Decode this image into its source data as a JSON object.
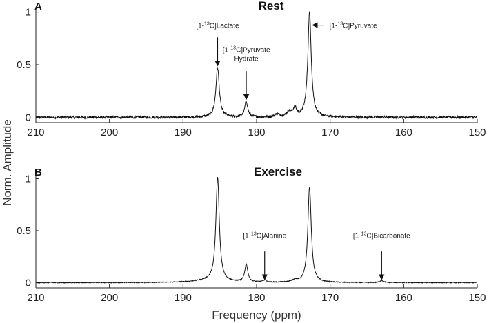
{
  "figure": {
    "ylabel": "Norm. Amplitude",
    "xlabel": "Frequency (ppm)"
  },
  "chart_data": [
    {
      "type": "line",
      "letter": "A",
      "title": "Rest",
      "xlim": [
        210,
        150
      ],
      "ylim": [
        -0.05,
        1.05
      ],
      "xticks": [
        210,
        200,
        190,
        180,
        170,
        160,
        150
      ],
      "yticks": [
        0,
        0.5,
        1
      ],
      "ytick_labels": [
        "0",
        "0.5",
        "1"
      ],
      "peaks": [
        {
          "ppm": 185.3,
          "height": 0.47,
          "width": 0.28
        },
        {
          "ppm": 181.4,
          "height": 0.15,
          "width": 0.25
        },
        {
          "ppm": 177.2,
          "height": 0.03,
          "width": 0.3
        },
        {
          "ppm": 175.6,
          "height": 0.05,
          "width": 0.35
        },
        {
          "ppm": 174.8,
          "height": 0.08,
          "width": 0.3
        },
        {
          "ppm": 172.8,
          "height": 1.0,
          "width": 0.28
        }
      ],
      "noise": 0.012,
      "annotations": [
        {
          "lines": [
            "[1-13C]Lactate"
          ],
          "ppm": 185.3,
          "arrow": "down",
          "text_y": 0.85,
          "arrow_start_y": 0.76,
          "arrow_end_y": 0.49
        },
        {
          "lines": [
            "[1-13C]Pyruvate",
            "Hydrate"
          ],
          "ppm": 181.4,
          "arrow": "down",
          "text_y": 0.62,
          "arrow_start_y": 0.44,
          "arrow_end_y": 0.17
        },
        {
          "lines": [
            "[1-13C]Pyruvate"
          ],
          "ppm": 172.8,
          "arrow": "left",
          "text_y": 0.85,
          "arrow_start_ppm": 170.8,
          "arrow_end_ppm": 172.4
        }
      ]
    },
    {
      "type": "line",
      "letter": "B",
      "title": "Exercise",
      "xlim": [
        210,
        150
      ],
      "ylim": [
        -0.05,
        1.05
      ],
      "xticks": [
        210,
        200,
        190,
        180,
        170,
        160,
        150
      ],
      "yticks": [
        0,
        0.5,
        1
      ],
      "ytick_labels": [
        "0",
        "0.5",
        "1"
      ],
      "peaks": [
        {
          "ppm": 185.3,
          "height": 1.0,
          "width": 0.28
        },
        {
          "ppm": 181.4,
          "height": 0.17,
          "width": 0.25
        },
        {
          "ppm": 178.9,
          "height": 0.02,
          "width": 0.3
        },
        {
          "ppm": 174.8,
          "height": 0.02,
          "width": 0.4
        },
        {
          "ppm": 172.8,
          "height": 0.92,
          "width": 0.28
        },
        {
          "ppm": 163.0,
          "height": 0.02,
          "width": 0.3
        }
      ],
      "broad": [
        {
          "ppm": 186.5,
          "height": 0.02,
          "width": 2.5
        }
      ],
      "noise": 0.004,
      "annotations": [
        {
          "lines": [
            "[1-13C]Alanine"
          ],
          "ppm": 178.9,
          "arrow": "down",
          "text_y": 0.43,
          "arrow_start_y": 0.3,
          "arrow_end_y": 0.03
        },
        {
          "lines": [
            "[1-13C]Bicarbonate"
          ],
          "ppm": 163.0,
          "arrow": "down",
          "text_y": 0.43,
          "arrow_start_y": 0.3,
          "arrow_end_y": 0.03
        }
      ]
    }
  ]
}
